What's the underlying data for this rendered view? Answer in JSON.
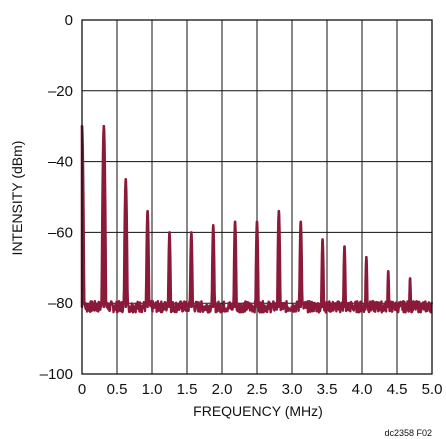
{
  "chart_data": {
    "type": "line",
    "xlabel": "FREQUENCY (MHz)",
    "ylabel": "INTENSITY (dBm)",
    "xlim": [
      0,
      5.0
    ],
    "ylim": [
      -100,
      0
    ],
    "x_ticks": [
      "0",
      "0.5",
      "1.0",
      "1.5",
      "2.0",
      "2.5",
      "3.0",
      "3.5",
      "4.0",
      "4.5",
      "5.0"
    ],
    "y_ticks": [
      "0",
      "–20",
      "–40",
      "–60",
      "–80",
      "–100"
    ],
    "x_tick_values": [
      0,
      0.5,
      1.0,
      1.5,
      2.0,
      2.5,
      3.0,
      3.5,
      4.0,
      4.5,
      5.0
    ],
    "y_tick_values": [
      0,
      -20,
      -40,
      -60,
      -80,
      -100
    ],
    "grid": true,
    "line_color": "#8b1a3a",
    "noise_floor_dbm": -81,
    "series": [
      {
        "peaks": [
          {
            "x": 0.0,
            "y": -30
          },
          {
            "x": 0.312,
            "y": -30
          },
          {
            "x": 0.625,
            "y": -45
          },
          {
            "x": 0.937,
            "y": -54
          },
          {
            "x": 1.25,
            "y": -60
          },
          {
            "x": 1.562,
            "y": -60
          },
          {
            "x": 1.875,
            "y": -58
          },
          {
            "x": 2.187,
            "y": -57
          },
          {
            "x": 2.5,
            "y": -57
          },
          {
            "x": 2.812,
            "y": -54
          },
          {
            "x": 3.125,
            "y": -57
          },
          {
            "x": 3.437,
            "y": -62
          },
          {
            "x": 3.75,
            "y": -64
          },
          {
            "x": 4.062,
            "y": -67
          },
          {
            "x": 4.375,
            "y": -71
          },
          {
            "x": 4.687,
            "y": -73
          }
        ]
      }
    ]
  },
  "figure_code": "dc2358 F02"
}
